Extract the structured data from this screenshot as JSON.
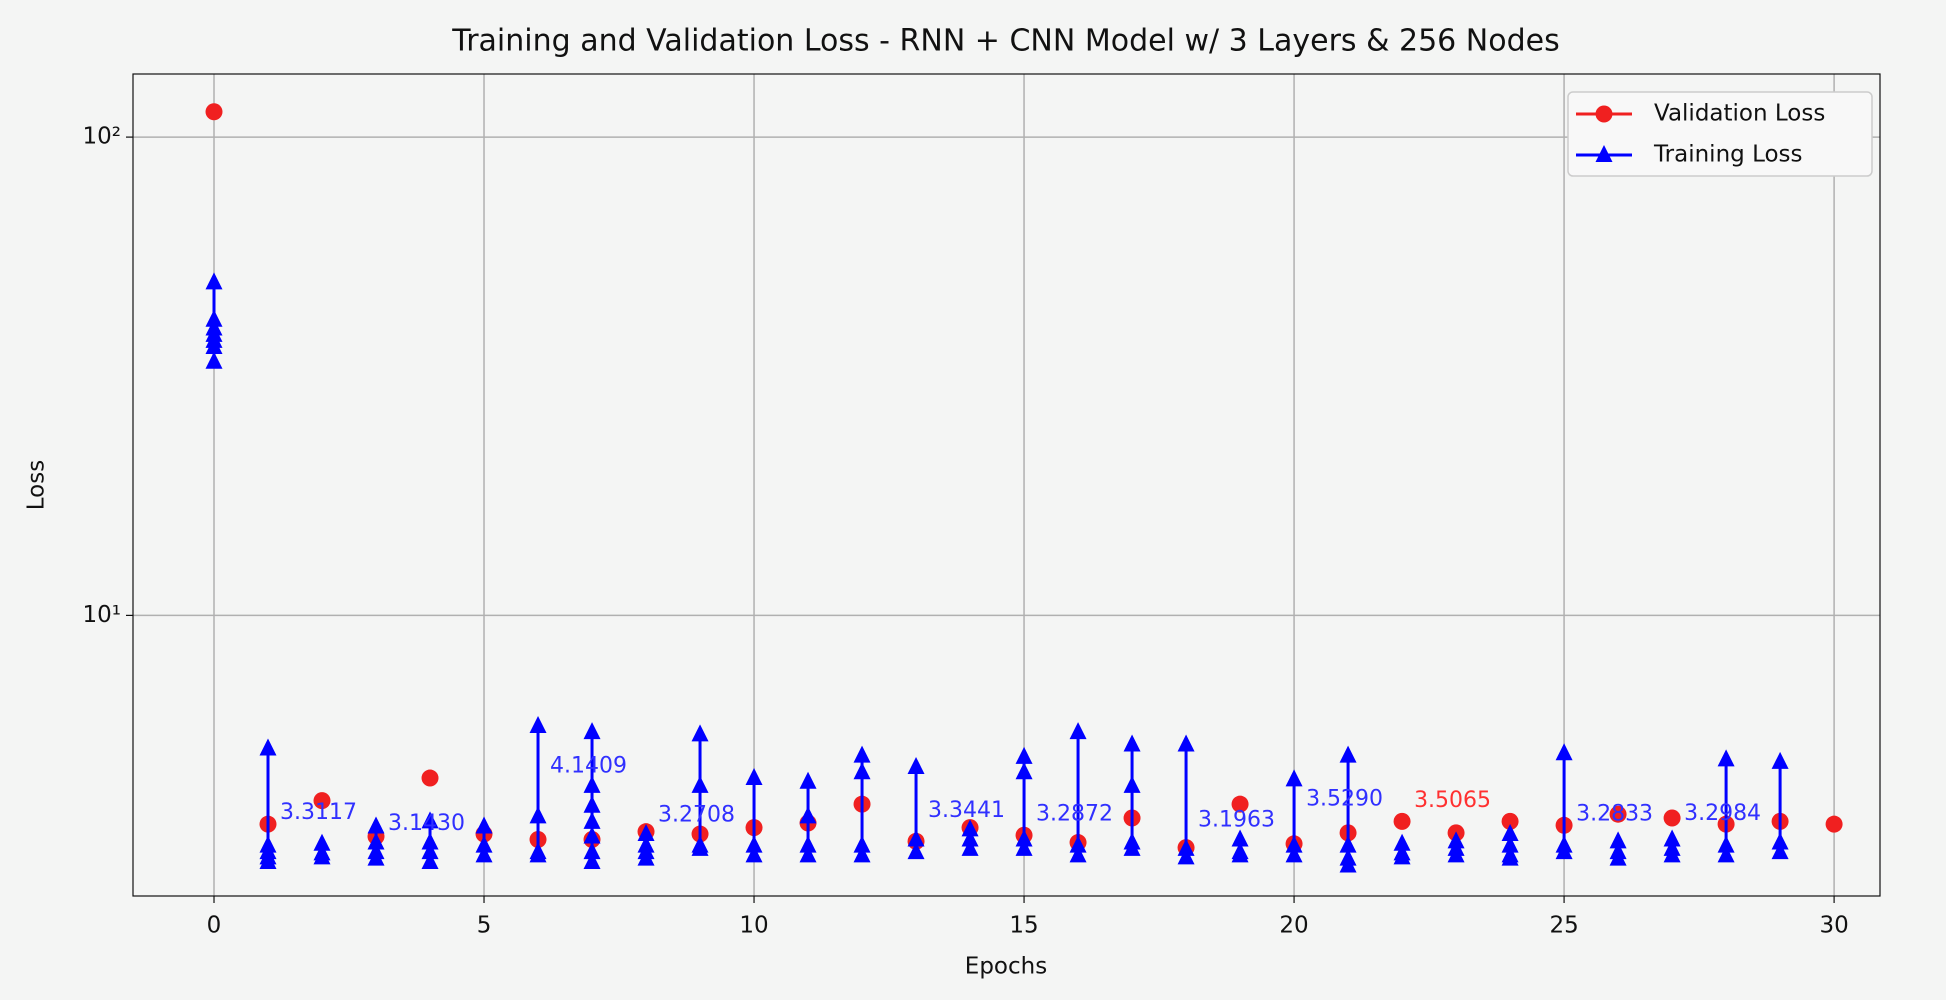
{
  "chart_data": {
    "type": "line",
    "title": "Training and Validation Loss - RNN + CNN Model w/ 3 Layers & 256 Nodes",
    "xlabel": "Epochs",
    "ylabel": "Loss",
    "yscale": "log",
    "grid": true,
    "legend": "upper right",
    "xlim": [
      -1.5,
      30.85
    ],
    "xticks": [
      0,
      5,
      10,
      15,
      20,
      25,
      30
    ],
    "ylim": [
      2.59,
      135.5
    ],
    "yticks": [
      {
        "value": 10,
        "label": "10¹"
      },
      {
        "value": 100,
        "label": "10²"
      }
    ],
    "series": [
      {
        "name": "Validation Loss",
        "color": "#f02020",
        "marker": "circle",
        "line": false,
        "x": [
          0,
          1,
          2,
          3,
          4,
          5,
          6,
          7,
          8,
          9,
          10,
          11,
          12,
          13,
          14,
          15,
          16,
          17,
          18,
          19,
          20,
          21,
          22,
          23,
          24,
          25,
          26,
          27,
          28,
          29,
          30
        ],
        "values": [
          113,
          3.66,
          4.1,
          3.45,
          4.57,
          3.49,
          3.4,
          3.4,
          3.53,
          3.49,
          3.6,
          3.68,
          4.03,
          3.37,
          3.6,
          3.47,
          3.35,
          3.77,
          3.27,
          4.03,
          3.33,
          3.51,
          3.71,
          3.51,
          3.71,
          3.64,
          3.84,
          3.77,
          3.66,
          3.71,
          3.66
        ]
      },
      {
        "name": "Training Loss",
        "color": "#0000ff",
        "marker": "triangle",
        "line": true,
        "x": [
          0,
          0,
          0,
          0,
          0,
          0,
          0,
          null,
          1,
          1,
          1,
          1,
          1,
          null,
          2,
          2,
          2,
          null,
          3,
          3,
          3,
          3,
          null,
          4,
          4,
          4,
          4,
          null,
          5,
          5,
          5,
          null,
          6,
          6,
          6,
          6,
          null,
          7,
          7,
          7,
          7,
          7,
          7,
          7,
          null,
          8,
          8,
          8,
          8,
          null,
          9,
          9,
          9,
          9,
          null,
          10,
          10,
          10,
          null,
          11,
          11,
          11,
          11,
          null,
          12,
          12,
          12,
          12,
          null,
          13,
          13,
          13,
          null,
          14,
          14,
          14,
          null,
          15,
          15,
          15,
          15,
          null,
          16,
          16,
          16,
          null,
          17,
          17,
          17,
          17,
          null,
          18,
          18,
          18,
          null,
          19,
          19,
          19,
          null,
          20,
          20,
          20,
          null,
          21,
          21,
          21,
          21,
          null,
          22,
          22,
          22,
          null,
          23,
          23,
          23,
          null,
          24,
          24,
          24,
          24,
          null,
          25,
          25,
          25,
          null,
          26,
          26,
          26,
          null,
          27,
          27,
          27,
          null,
          28,
          28,
          28,
          null,
          29,
          29,
          29
        ],
        "values": [
          49.7,
          41.5,
          39.8,
          38.6,
          37.5,
          36.4,
          33.9,
          null,
          5.27,
          3.3,
          3.2,
          3.12,
          3.05,
          null,
          3.33,
          3.18,
          3.12,
          null,
          3.62,
          3.35,
          3.2,
          3.1,
          null,
          3.71,
          3.35,
          3.2,
          3.05,
          null,
          3.62,
          3.3,
          3.15,
          null,
          5.87,
          3.8,
          3.2,
          3.15,
          null,
          5.7,
          4.4,
          4.0,
          3.7,
          3.45,
          3.2,
          3.05,
          null,
          3.49,
          3.3,
          3.2,
          3.1,
          null,
          5.64,
          4.4,
          3.3,
          3.25,
          null,
          4.57,
          3.3,
          3.15,
          null,
          4.49,
          3.8,
          3.3,
          3.15,
          null,
          5.09,
          4.7,
          3.3,
          3.15,
          null,
          4.82,
          3.4,
          3.2,
          null,
          3.57,
          3.4,
          3.25,
          null,
          5.06,
          4.7,
          3.4,
          3.25,
          null,
          5.7,
          3.3,
          3.15,
          null,
          5.37,
          4.4,
          3.35,
          3.25,
          null,
          5.37,
          3.25,
          3.12,
          null,
          3.4,
          3.2,
          3.15,
          null,
          4.54,
          3.3,
          3.15,
          null,
          5.09,
          3.3,
          3.1,
          3.0,
          null,
          3.33,
          3.18,
          3.12,
          null,
          3.37,
          3.25,
          3.15,
          null,
          3.49,
          3.3,
          3.15,
          3.1,
          null,
          5.15,
          3.3,
          3.2,
          null,
          3.37,
          3.2,
          3.1,
          null,
          3.4,
          3.25,
          3.15,
          null,
          5.0,
          3.3,
          3.15,
          null,
          4.94,
          3.35,
          3.2
        ]
      }
    ],
    "annotations": [
      {
        "text": "3.3117",
        "x": 1,
        "y": 3.3117,
        "color": "#3030ff"
      },
      {
        "text": "3.1430",
        "x": 3,
        "y": 3.143,
        "color": "#3030ff"
      },
      {
        "text": "4.1409",
        "x": 6,
        "y": 4.1409,
        "color": "#3030ff"
      },
      {
        "text": "3.2708",
        "x": 8,
        "y": 3.2708,
        "color": "#3030ff"
      },
      {
        "text": "3.3441",
        "x": 13,
        "y": 3.3441,
        "color": "#3030ff"
      },
      {
        "text": "3.2872",
        "x": 15,
        "y": 3.2872,
        "color": "#3030ff"
      },
      {
        "text": "3.1963",
        "x": 18,
        "y": 3.1963,
        "color": "#3030ff"
      },
      {
        "text": "3.5290",
        "x": 20,
        "y": 3.529,
        "color": "#3030ff"
      },
      {
        "text": "3.5065",
        "x": 22,
        "y": 3.5065,
        "color": "#ff3030"
      },
      {
        "text": "3.2833",
        "x": 25,
        "y": 3.2833,
        "color": "#3030ff"
      },
      {
        "text": "3.2984",
        "x": 27,
        "y": 3.2984,
        "color": "#3030ff"
      }
    ]
  }
}
